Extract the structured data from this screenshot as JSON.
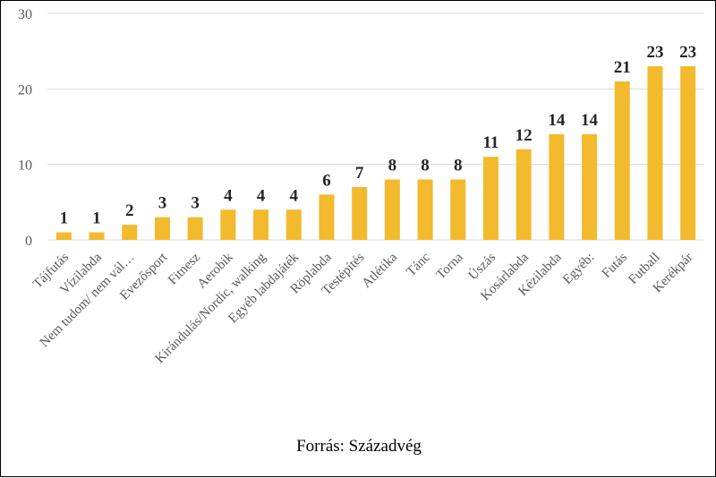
{
  "chart_data": {
    "type": "bar",
    "categories": [
      "Tájfutás",
      "Vízilabda",
      "Nem tudom/ nem vál…",
      "Evezősport",
      "Fitnesz",
      "Aerobik",
      "Kirándulás/Nordic, walking",
      "Egyéb labdajáték",
      "Röplabda",
      "Testépítés",
      "Atlétika",
      "Tánc",
      "Torna",
      "Úszás",
      "Kosárlabda",
      "Kézilabda",
      "Egyéb:",
      "Futás",
      "Futball",
      "Kerékpár"
    ],
    "values": [
      1,
      1,
      2,
      3,
      3,
      4,
      4,
      4,
      6,
      7,
      8,
      8,
      8,
      11,
      12,
      14,
      14,
      21,
      23,
      23
    ],
    "yticks": [
      0,
      10,
      20,
      30
    ],
    "ylim": [
      0,
      30
    ],
    "bar_color": "#F2BA2C",
    "grid": true,
    "source": "Forrás: Századvég"
  }
}
